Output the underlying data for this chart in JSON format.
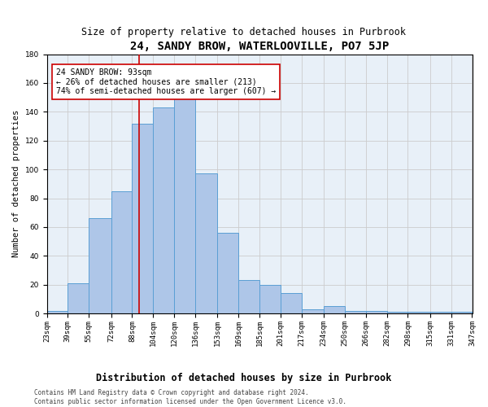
{
  "title": "24, SANDY BROW, WATERLOOVILLE, PO7 5JP",
  "subtitle": "Size of property relative to detached houses in Purbrook",
  "xlabel": "Distribution of detached houses by size in Purbrook",
  "ylabel": "Number of detached properties",
  "bin_edges": [
    23,
    39,
    55,
    72,
    88,
    104,
    120,
    136,
    153,
    169,
    185,
    201,
    217,
    234,
    250,
    266,
    282,
    298,
    315,
    331,
    347
  ],
  "hist_values": [
    2,
    21,
    66,
    85,
    132,
    143,
    150,
    97,
    56,
    23,
    20,
    14,
    3,
    5,
    2,
    2,
    1,
    1,
    1,
    1
  ],
  "tick_labels": [
    "23sqm",
    "39sqm",
    "55sqm",
    "72sqm",
    "88sqm",
    "104sqm",
    "120sqm",
    "136sqm",
    "153sqm",
    "169sqm",
    "185sqm",
    "201sqm",
    "217sqm",
    "234sqm",
    "250sqm",
    "266sqm",
    "282sqm",
    "298sqm",
    "315sqm",
    "331sqm",
    "347sqm"
  ],
  "bar_color": "#aec6e8",
  "bar_edge_color": "#5a9fd4",
  "vline_x": 93,
  "vline_color": "#cc0000",
  "annotation_text": "24 SANDY BROW: 93sqm\n← 26% of detached houses are smaller (213)\n74% of semi-detached houses are larger (607) →",
  "annotation_box_color": "white",
  "annotation_box_edge": "#cc0000",
  "ylim": [
    0,
    180
  ],
  "yticks": [
    0,
    20,
    40,
    60,
    80,
    100,
    120,
    140,
    160,
    180
  ],
  "grid_color": "#cccccc",
  "bg_color": "#e8f0f8",
  "footer_text": "Contains HM Land Registry data © Crown copyright and database right 2024.\nContains public sector information licensed under the Open Government Licence v3.0.",
  "title_fontsize": 10,
  "subtitle_fontsize": 8.5,
  "xlabel_fontsize": 8.5,
  "ylabel_fontsize": 7.5,
  "tick_fontsize": 6.5,
  "annotation_fontsize": 7,
  "footer_fontsize": 5.5
}
